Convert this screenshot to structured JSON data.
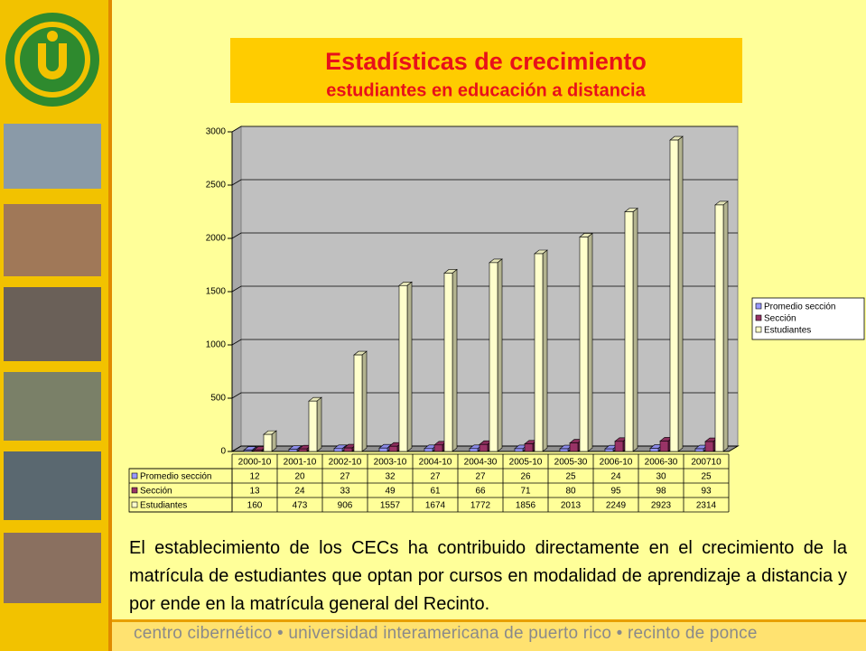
{
  "chart_data": {
    "type": "bar",
    "title": "Estadísticas de crecimiento",
    "subtitle": "estudiantes en educación a distancia",
    "categories": [
      "2000-10",
      "2001-10",
      "2002-10",
      "2003-10",
      "2004-10",
      "2004-30",
      "2005-10",
      "2005-30",
      "2006-10",
      "2006-30",
      "200710"
    ],
    "series": [
      {
        "name": "Promedio sección",
        "color": "#9999FF",
        "values": [
          12,
          20,
          27,
          32,
          27,
          27,
          26,
          25,
          24,
          30,
          25
        ]
      },
      {
        "name": "Sección",
        "color": "#993366",
        "values": [
          13,
          24,
          33,
          49,
          61,
          66,
          71,
          80,
          95,
          98,
          93
        ]
      },
      {
        "name": "Estudiantes",
        "color": "#FFFFCC",
        "values": [
          160,
          473,
          906,
          1557,
          1674,
          1772,
          1856,
          2013,
          2249,
          2923,
          2314
        ]
      }
    ],
    "ylim": [
      0,
      3000
    ],
    "yticks": [
      0,
      500,
      1000,
      1500,
      2000,
      2500,
      3000
    ],
    "grid": true,
    "legend": "right"
  },
  "body_text": "El establecimiento de los CECs ha contribuido directamente en el crecimiento de la matrícula de estudiantes que optan por cursos en modalidad de aprendizaje a distancia y por ende en la matrícula general del Recinto.",
  "footer": "centro cibernético • universidad interamericana de puerto rico • recinto de ponce"
}
